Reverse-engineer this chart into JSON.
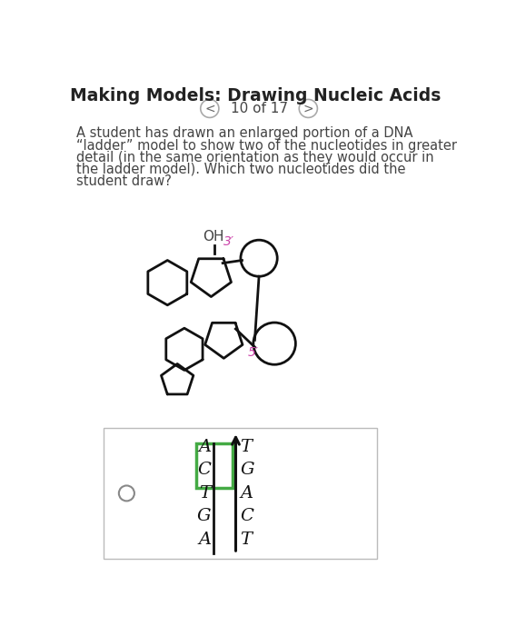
{
  "title": "Making Models: Drawing Nucleic Acids",
  "nav_text": "10 of 17",
  "body_lines": [
    "A student has drawn an enlarged portion of a DNA",
    "“ladder” model to show two of the nucleotides in greater",
    "detail (in the same orientation as they would occur in",
    "the ladder model). Which two nucleotides did the",
    "student draw?"
  ],
  "oh_label": "OH",
  "label_3prime": "3′",
  "label_5prime": "5′",
  "dna_pairs": [
    [
      "A",
      "T"
    ],
    [
      "C",
      "G"
    ],
    [
      "T",
      "A"
    ],
    [
      "G",
      "C"
    ],
    [
      "A",
      "T"
    ]
  ],
  "highlight_pairs": [
    0,
    1
  ],
  "bg_color": "#ffffff",
  "text_color": "#444444",
  "title_color": "#222222",
  "pink_color": "#cc44aa",
  "green_color": "#44aa44",
  "line_color": "#111111",
  "nav_circle_color": "#aaaaaa",
  "box_border": "#bbbbbb",
  "radio_color": "#888888"
}
